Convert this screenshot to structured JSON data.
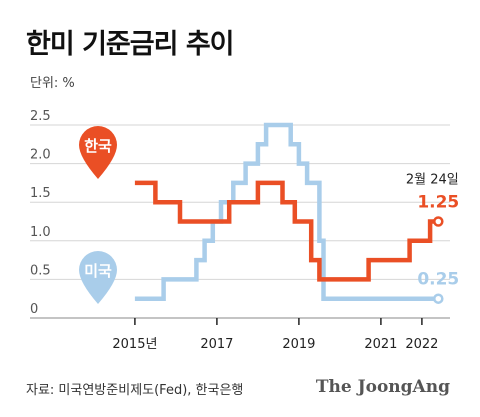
{
  "header": {
    "title": "한미 기준금리 추이",
    "unit": "단위: %"
  },
  "footer": {
    "source": "자료: 미국연방준비제도(Fed), 한국은행",
    "brand": "The JoongAng"
  },
  "chart_data": {
    "type": "line",
    "step": true,
    "x_range": [
      2015.0,
      2023.3
    ],
    "ylim": [
      0,
      2.5
    ],
    "yticks": [
      "0",
      "0.5",
      "1.0",
      "1.5",
      "2.0",
      "2.5"
    ],
    "ytick_values": [
      0,
      0.5,
      1.0,
      1.5,
      2.0,
      2.5
    ],
    "xticks": [
      "2015년",
      "2017",
      "2019",
      "2021",
      "2022"
    ],
    "xtick_values": [
      2015.9,
      2017.9,
      2019.9,
      2021.9,
      2022.9
    ],
    "grid": "horizontal",
    "annotation": "2월 24일",
    "series": [
      {
        "name": "한국",
        "color": "#ea4f25",
        "end_label": "1.25",
        "points": [
          [
            2015.9,
            1.75
          ],
          [
            2016.4,
            1.75
          ],
          [
            2016.4,
            1.5
          ],
          [
            2017.0,
            1.5
          ],
          [
            2017.0,
            1.25
          ],
          [
            2018.2,
            1.25
          ],
          [
            2018.2,
            1.5
          ],
          [
            2018.9,
            1.5
          ],
          [
            2018.9,
            1.75
          ],
          [
            2019.5,
            1.75
          ],
          [
            2019.5,
            1.5
          ],
          [
            2019.8,
            1.5
          ],
          [
            2019.8,
            1.25
          ],
          [
            2020.2,
            1.25
          ],
          [
            2020.2,
            0.75
          ],
          [
            2020.4,
            0.75
          ],
          [
            2020.4,
            0.5
          ],
          [
            2021.6,
            0.5
          ],
          [
            2021.6,
            0.75
          ],
          [
            2022.6,
            0.75
          ],
          [
            2022.6,
            1.0
          ],
          [
            2023.1,
            1.0
          ],
          [
            2023.1,
            1.25
          ],
          [
            2023.3,
            1.25
          ]
        ]
      },
      {
        "name": "미국",
        "color": "#a9cdea",
        "end_label": "0.25",
        "points": [
          [
            2015.9,
            0.25
          ],
          [
            2016.6,
            0.25
          ],
          [
            2016.6,
            0.5
          ],
          [
            2017.4,
            0.5
          ],
          [
            2017.4,
            0.75
          ],
          [
            2017.6,
            0.75
          ],
          [
            2017.6,
            1.0
          ],
          [
            2017.8,
            1.0
          ],
          [
            2017.8,
            1.25
          ],
          [
            2018.0,
            1.25
          ],
          [
            2018.0,
            1.5
          ],
          [
            2018.3,
            1.5
          ],
          [
            2018.3,
            1.75
          ],
          [
            2018.6,
            1.75
          ],
          [
            2018.6,
            2.0
          ],
          [
            2018.9,
            2.0
          ],
          [
            2018.9,
            2.25
          ],
          [
            2019.1,
            2.25
          ],
          [
            2019.1,
            2.5
          ],
          [
            2019.7,
            2.5
          ],
          [
            2019.7,
            2.25
          ],
          [
            2019.9,
            2.25
          ],
          [
            2019.9,
            2.0
          ],
          [
            2020.1,
            2.0
          ],
          [
            2020.1,
            1.75
          ],
          [
            2020.4,
            1.75
          ],
          [
            2020.4,
            1.0
          ],
          [
            2020.5,
            1.0
          ],
          [
            2020.5,
            0.25
          ],
          [
            2023.3,
            0.25
          ]
        ]
      }
    ]
  }
}
